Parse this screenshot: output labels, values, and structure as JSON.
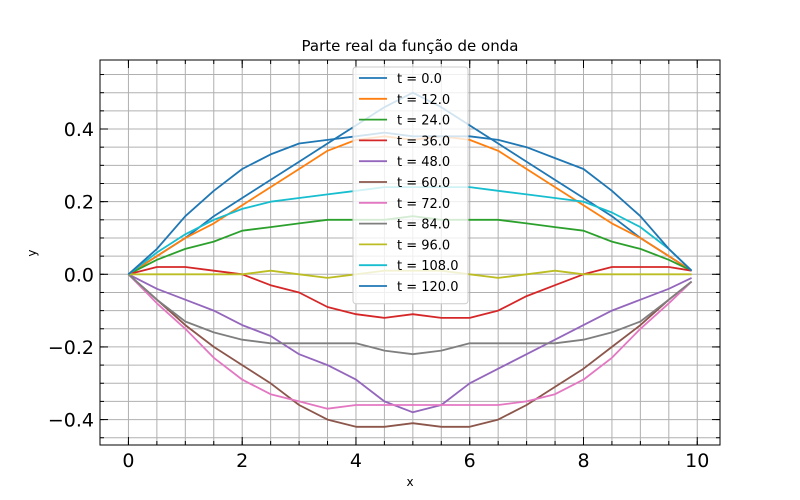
{
  "chart_data": {
    "type": "line",
    "title": "Parte real da função de onda",
    "xlabel": "x",
    "ylabel": "y",
    "xlim": [
      -0.5,
      10.4
    ],
    "ylim": [
      -0.47,
      0.59
    ],
    "grid": true,
    "legend_position": "top-center",
    "x_ticks": [
      0,
      2,
      4,
      6,
      8,
      10
    ],
    "x_tick_labels": [
      "0",
      "2",
      "4",
      "6",
      "8",
      "10"
    ],
    "y_ticks": [
      -0.4,
      -0.2,
      0.0,
      0.2,
      0.4
    ],
    "y_tick_labels": [
      "−0.4",
      "−0.2",
      "0.0",
      "0.2",
      "0.4"
    ],
    "x": [
      0,
      0.5,
      1,
      1.5,
      2,
      2.5,
      3,
      3.5,
      4,
      4.5,
      5,
      5.5,
      6,
      6.5,
      7,
      7.5,
      8,
      8.5,
      9,
      9.5,
      9.9
    ],
    "series": [
      {
        "name": "t = 0.0",
        "color": "#1f77b4",
        "values": [
          0,
          0.05,
          0.1,
          0.16,
          0.21,
          0.26,
          0.31,
          0.36,
          0.41,
          0.46,
          0.5,
          0.46,
          0.41,
          0.36,
          0.31,
          0.26,
          0.21,
          0.16,
          0.1,
          0.05,
          0.01
        ]
      },
      {
        "name": "t = 12.0",
        "color": "#ff7f0e",
        "values": [
          0,
          0.05,
          0.1,
          0.14,
          0.19,
          0.24,
          0.29,
          0.34,
          0.37,
          0.38,
          0.37,
          0.38,
          0.37,
          0.34,
          0.29,
          0.24,
          0.19,
          0.14,
          0.1,
          0.05,
          0.01
        ]
      },
      {
        "name": "t = 24.0",
        "color": "#2ca02c",
        "values": [
          0,
          0.04,
          0.07,
          0.09,
          0.12,
          0.13,
          0.14,
          0.15,
          0.15,
          0.15,
          0.16,
          0.15,
          0.15,
          0.15,
          0.14,
          0.13,
          0.12,
          0.09,
          0.07,
          0.04,
          0.01
        ]
      },
      {
        "name": "t = 36.0",
        "color": "#d62728",
        "values": [
          0,
          0.02,
          0.02,
          0.01,
          0.0,
          -0.03,
          -0.05,
          -0.09,
          -0.11,
          -0.12,
          -0.11,
          -0.12,
          -0.12,
          -0.1,
          -0.06,
          -0.03,
          0.0,
          0.02,
          0.02,
          0.02,
          0.01
        ]
      },
      {
        "name": "t = 48.0",
        "color": "#9467bd",
        "values": [
          0,
          -0.04,
          -0.07,
          -0.1,
          -0.14,
          -0.17,
          -0.22,
          -0.25,
          -0.29,
          -0.35,
          -0.38,
          -0.36,
          -0.3,
          -0.26,
          -0.22,
          -0.18,
          -0.14,
          -0.1,
          -0.07,
          -0.04,
          -0.01
        ]
      },
      {
        "name": "t = 60.0",
        "color": "#8c564b",
        "values": [
          0,
          -0.07,
          -0.14,
          -0.2,
          -0.25,
          -0.3,
          -0.36,
          -0.4,
          -0.42,
          -0.42,
          -0.41,
          -0.42,
          -0.42,
          -0.4,
          -0.36,
          -0.31,
          -0.26,
          -0.2,
          -0.14,
          -0.07,
          -0.02
        ]
      },
      {
        "name": "t = 72.0",
        "color": "#e377c2",
        "values": [
          0,
          -0.08,
          -0.15,
          -0.23,
          -0.29,
          -0.33,
          -0.35,
          -0.37,
          -0.36,
          -0.36,
          -0.36,
          -0.36,
          -0.36,
          -0.36,
          -0.35,
          -0.33,
          -0.29,
          -0.23,
          -0.15,
          -0.08,
          -0.02
        ]
      },
      {
        "name": "t = 84.0",
        "color": "#7f7f7f",
        "values": [
          0,
          -0.07,
          -0.13,
          -0.16,
          -0.18,
          -0.19,
          -0.19,
          -0.19,
          -0.19,
          -0.21,
          -0.22,
          -0.21,
          -0.19,
          -0.19,
          -0.19,
          -0.19,
          -0.18,
          -0.16,
          -0.13,
          -0.07,
          -0.02
        ]
      },
      {
        "name": "t = 96.0",
        "color": "#bcbd22",
        "values": [
          0,
          0.0,
          0.0,
          0.0,
          0.0,
          0.01,
          0.0,
          -0.01,
          0.0,
          0.01,
          0.01,
          0.01,
          0.0,
          -0.01,
          0.0,
          0.01,
          0.0,
          0.0,
          0.0,
          0.0,
          0.0
        ]
      },
      {
        "name": "t = 108.0",
        "color": "#17becf",
        "values": [
          0,
          0.06,
          0.11,
          0.15,
          0.18,
          0.2,
          0.21,
          0.22,
          0.23,
          0.24,
          0.24,
          0.24,
          0.24,
          0.23,
          0.22,
          0.21,
          0.2,
          0.17,
          0.13,
          0.07,
          0.01
        ]
      },
      {
        "name": "t = 120.0",
        "color": "#1f77b4",
        "values": [
          0,
          0.07,
          0.16,
          0.23,
          0.29,
          0.33,
          0.36,
          0.37,
          0.38,
          0.39,
          0.38,
          0.38,
          0.38,
          0.37,
          0.35,
          0.32,
          0.29,
          0.23,
          0.16,
          0.07,
          0.01
        ]
      }
    ]
  }
}
